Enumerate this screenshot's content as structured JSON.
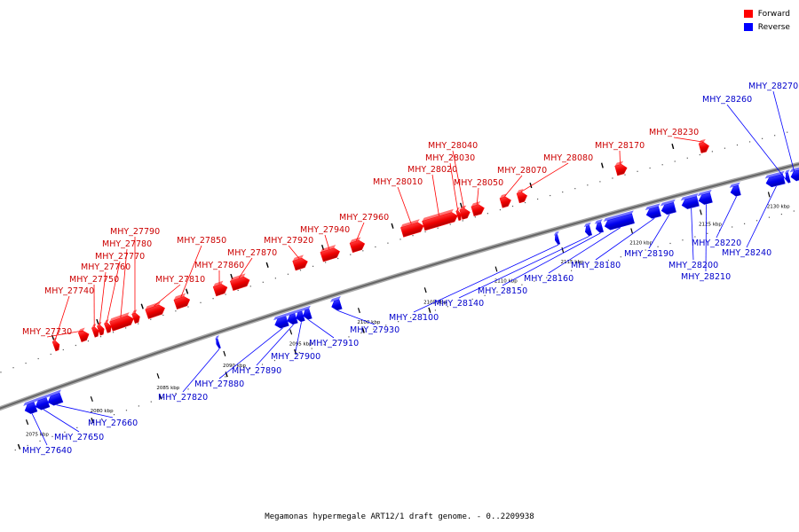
{
  "caption": "Megamonas hypermegale ART12/1 draft genome. - 0..2209938",
  "legend": {
    "forward": {
      "label": "Forward",
      "color": "#ff0000"
    },
    "reverse": {
      "label": "Reverse",
      "color": "#0000ff"
    }
  },
  "colors": {
    "forward": "#ff0000",
    "reverse": "#0000ff",
    "backbone": "#808080",
    "label_forward": "#cc0000",
    "label_reverse": "#0000cc"
  },
  "ticks": [
    "2075 kbp",
    "2080 kbp",
    "2085 kbp",
    "2090 kbp",
    "2095 kbp",
    "2100 kbp",
    "2105 kbp",
    "2110 kbp",
    "2115 kbp",
    "2120 kbp",
    "2125 kbp",
    "2130 kbp"
  ],
  "forward_genes": [
    "MHY_27730",
    "MHY_27740",
    "MHY_27750",
    "MHY_27760",
    "MHY_27770",
    "MHY_27780",
    "MHY_27790",
    "MHY_27810",
    "MHY_27850",
    "MHY_27860",
    "MHY_27870",
    "MHY_27920",
    "MHY_27940",
    "MHY_27960",
    "MHY_28010",
    "MHY_28020",
    "MHY_28030",
    "MHY_28040",
    "MHY_28050",
    "MHY_28070",
    "MHY_28080",
    "MHY_28170",
    "MHY_28230"
  ],
  "reverse_genes": [
    "MHY_27640",
    "MHY_27650",
    "MHY_27660",
    "MHY_27820",
    "MHY_27880",
    "MHY_27890",
    "MHY_27900",
    "MHY_27910",
    "MHY_27930",
    "MHY_28100",
    "MHY_28140",
    "MHY_28150",
    "MHY_28160",
    "MHY_28180",
    "MHY_28190",
    "MHY_28200",
    "MHY_28210",
    "MHY_28220",
    "MHY_28240",
    "MHY_28260",
    "MHY_28270"
  ]
}
